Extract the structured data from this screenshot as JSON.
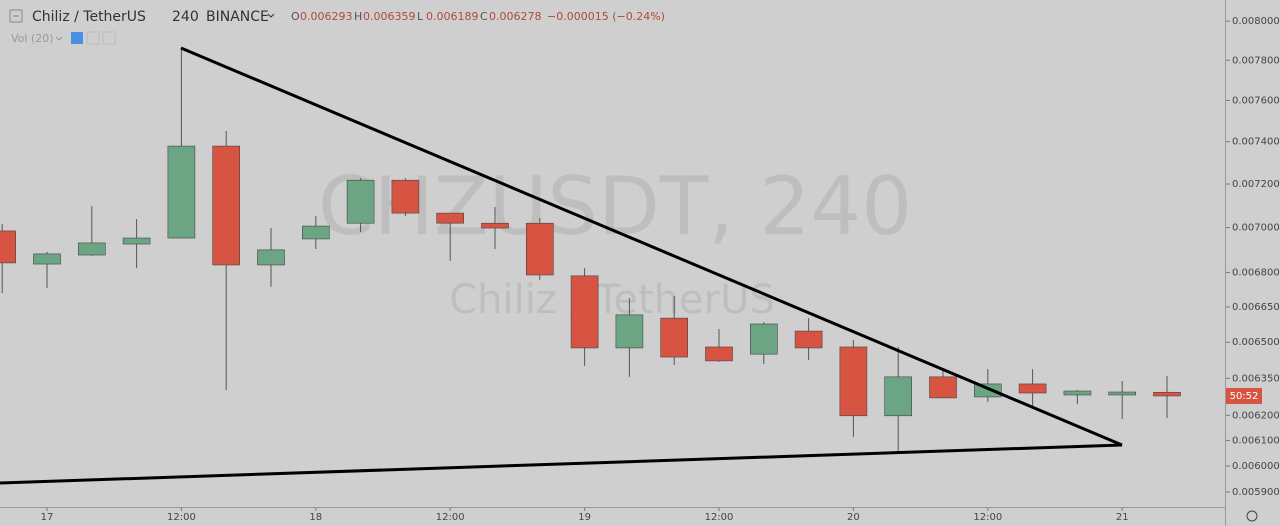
{
  "header": {
    "symbol": "Chiliz / TetherUS",
    "interval": "240",
    "exchange": "BINANCE",
    "ohlc": [
      {
        "label": "O",
        "value": "0.006293"
      },
      {
        "label": "H",
        "value": "0.006359"
      },
      {
        "label": "L",
        "value": "0.006189"
      },
      {
        "label": "C",
        "value": "0.006278"
      }
    ],
    "change": "−0.000015 (−0.24%)",
    "volume": "Vol (20)",
    "price_badge": "50:52"
  },
  "chart_data": {
    "type": "candlestick",
    "watermark": [
      "CHZUSDT, 240",
      "Chiliz / TetherUS"
    ],
    "categories": [
      null,
      "17",
      null,
      null,
      "12:00",
      null,
      null,
      "18",
      null,
      null,
      "12:00",
      null,
      null,
      "19",
      null,
      null,
      "12:00",
      null,
      null,
      "20",
      null,
      null,
      "12:00",
      null,
      null,
      "21",
      null
    ],
    "open": [
      0.006985,
      0.006837,
      0.006877,
      0.006926,
      0.006953,
      0.007379,
      0.006833,
      0.006949,
      0.00702,
      0.007218,
      0.007066,
      0.00702,
      0.00702,
      0.006785,
      0.006476,
      0.006602,
      0.00648,
      0.00645,
      0.006547,
      0.00648,
      0.006198,
      0.006356,
      0.006274,
      0.006327,
      0.006282,
      0.006282,
      0.006293
    ],
    "high": [
      0.007016,
      0.006891,
      0.007098,
      0.007039,
      0.007862,
      0.007451,
      0.006998,
      0.007052,
      0.007228,
      0.007228,
      0.007066,
      0.007094,
      0.007044,
      0.006819,
      0.006688,
      0.006697,
      0.006556,
      0.006585,
      0.006602,
      0.006509,
      0.00648,
      0.006384,
      0.006388,
      0.006388,
      0.006302,
      0.006339,
      0.006359
    ],
    "low": [
      0.00671,
      0.006732,
      0.006873,
      0.006819,
      0.006953,
      0.006302,
      0.006737,
      0.006904,
      0.00698,
      0.007052,
      0.006851,
      0.006904,
      0.006767,
      0.006401,
      0.006356,
      0.006405,
      0.006418,
      0.006409,
      0.006426,
      0.006114,
      0.006051,
      0.00627,
      0.006254,
      0.006226,
      0.006245,
      0.006185,
      0.006189
    ],
    "close": [
      0.006842,
      0.006882,
      0.006931,
      0.006953,
      0.007379,
      0.006833,
      0.0069,
      0.007007,
      0.007218,
      0.007066,
      0.00702,
      0.006998,
      0.006789,
      0.006476,
      0.006616,
      0.006438,
      0.006422,
      0.006577,
      0.006476,
      0.006198,
      0.006356,
      0.00627,
      0.006327,
      0.00629,
      0.006298,
      0.006294,
      0.006278
    ],
    "ylim": [
      0.005843,
      0.00811
    ],
    "log_scale": true,
    "yticks": [
      {
        "value": 0.008,
        "label": "0.008000"
      },
      {
        "value": 0.0078,
        "label": "0.007800"
      },
      {
        "value": 0.0076,
        "label": "0.007600"
      },
      {
        "value": 0.0074,
        "label": "0.007400"
      },
      {
        "value": 0.0072,
        "label": "0.007200"
      },
      {
        "value": 0.007,
        "label": "0.007000"
      },
      {
        "value": 0.0068,
        "label": "0.006800"
      },
      {
        "value": 0.00665,
        "label": "0.006650"
      },
      {
        "value": 0.0065,
        "label": "0.006500"
      },
      {
        "value": 0.00635,
        "label": "0.006350"
      },
      {
        "value": 0.0062,
        "label": "0.006200"
      },
      {
        "value": 0.0061,
        "label": "0.006100"
      },
      {
        "value": 0.006,
        "label": "0.006000"
      },
      {
        "value": 0.0059,
        "label": "0.005900"
      }
    ],
    "up_color": "#6ba583",
    "down_color": "#d75442"
  }
}
